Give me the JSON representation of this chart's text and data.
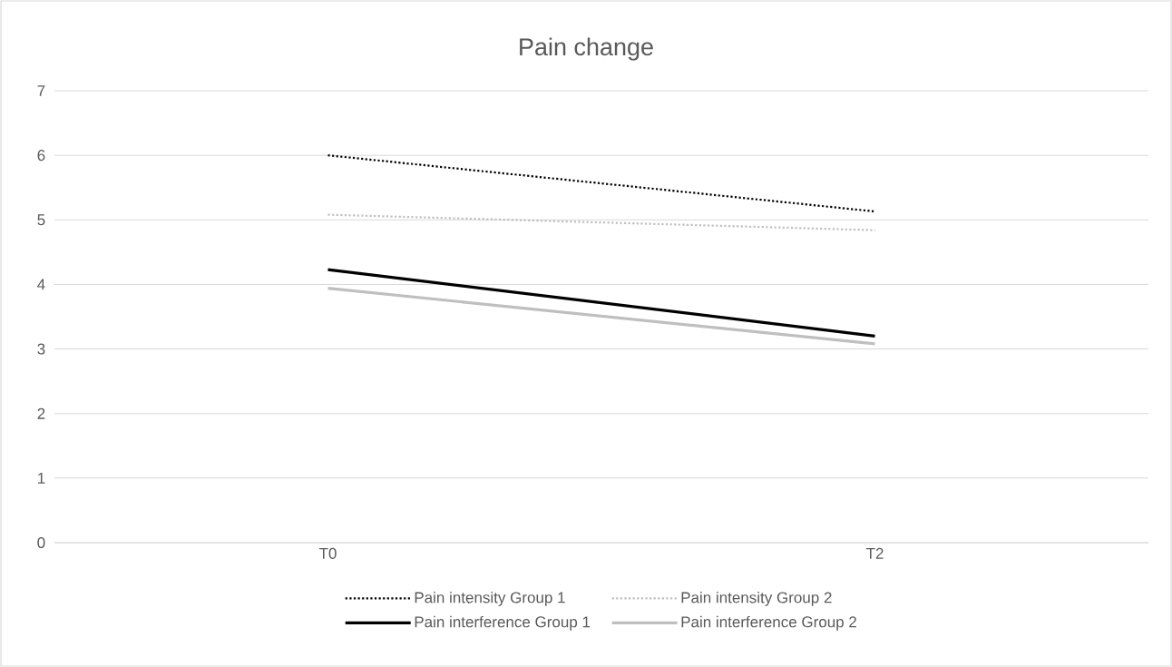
{
  "chart_data": {
    "type": "line",
    "title": "Pain change",
    "categories": [
      "T0",
      "T2"
    ],
    "series": [
      {
        "name": "Pain intensity Group 1",
        "color": "#000000",
        "line_style": "dotted",
        "values": [
          6.0,
          5.13
        ]
      },
      {
        "name": "Pain intensity Group 2",
        "color": "#bfbfbf",
        "line_style": "dotted",
        "values": [
          5.08,
          4.84
        ]
      },
      {
        "name": "Pain interference Group 1",
        "color": "#000000",
        "line_style": "solid",
        "values": [
          4.23,
          3.2
        ]
      },
      {
        "name": "Pain interference Group 2",
        "color": "#bfbfbf",
        "line_style": "solid",
        "values": [
          3.94,
          3.08
        ]
      }
    ],
    "ylim": [
      0,
      7
    ],
    "yticks": [
      0,
      1,
      2,
      3,
      4,
      5,
      6,
      7
    ],
    "grid": "y",
    "legend": "bottom",
    "marker": "none"
  }
}
